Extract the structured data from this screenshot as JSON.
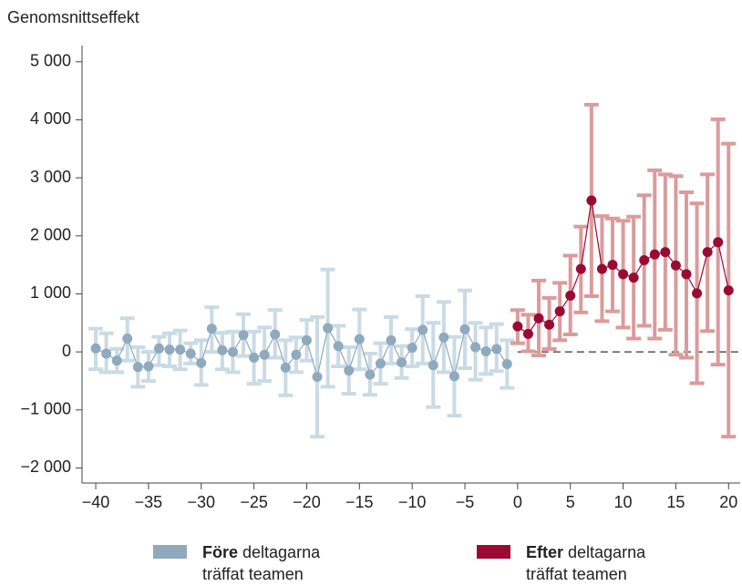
{
  "chart_data": {
    "type": "event-study",
    "y_label": "Genomsnittseffekt",
    "xlim": [
      -41.3,
      21.1
    ],
    "ylim": [
      -2260,
      5280
    ],
    "xticks": [
      {
        "value": -40,
        "label": "−40"
      },
      {
        "value": -35,
        "label": "−35"
      },
      {
        "value": -30,
        "label": "−30"
      },
      {
        "value": -25,
        "label": "−25"
      },
      {
        "value": -20,
        "label": "−20"
      },
      {
        "value": -15,
        "label": "−15"
      },
      {
        "value": -10,
        "label": "−10"
      },
      {
        "value": -5,
        "label": "−5"
      },
      0,
      5,
      10,
      15,
      20
    ],
    "yticks": [
      {
        "value": -2000,
        "label": "−2 000"
      },
      {
        "value": -1000,
        "label": "−1 000"
      },
      0,
      {
        "value": 1000,
        "label": "1 000"
      },
      {
        "value": 2000,
        "label": "2 000"
      },
      {
        "value": 3000,
        "label": "3 000"
      },
      {
        "value": 4000,
        "label": "4 000"
      },
      {
        "value": 5000,
        "label": "5 000"
      }
    ],
    "grid": false,
    "series": [
      {
        "name": "Före deltagarna träffat teamen",
        "color": "#8fa9bd",
        "error_color": "#c9dbe4",
        "x": [
          -40,
          -39,
          -38,
          -37,
          -36,
          -35,
          -34,
          -33,
          -32,
          -31,
          -30,
          -29,
          -28,
          -27,
          -26,
          -25,
          -24,
          -23,
          -22,
          -21,
          -20,
          -19,
          -18,
          -17,
          -16,
          -15,
          -14,
          -13,
          -12,
          -11,
          -10,
          -9,
          -8,
          -7,
          -6,
          -5,
          -4,
          -3,
          -2,
          -1
        ],
        "values": [
          60,
          -30,
          -150,
          230,
          -260,
          -250,
          60,
          40,
          40,
          -30,
          -190,
          400,
          30,
          0,
          290,
          -100,
          -50,
          300,
          -270,
          -50,
          200,
          -430,
          410,
          100,
          -320,
          220,
          -390,
          -200,
          200,
          -180,
          70,
          380,
          -230,
          250,
          -420,
          390,
          80,
          10,
          50,
          -210
        ],
        "lower": [
          -300,
          -350,
          -350,
          -150,
          -600,
          -500,
          -230,
          -250,
          -300,
          -200,
          -570,
          0,
          -300,
          -350,
          -70,
          -550,
          -500,
          -100,
          -750,
          -350,
          -150,
          -1460,
          -600,
          -250,
          -720,
          -300,
          -740,
          -550,
          -200,
          -450,
          -250,
          -200,
          -950,
          -350,
          -1100,
          -280,
          -480,
          -380,
          -330,
          -620
        ],
        "upper": [
          400,
          320,
          50,
          580,
          80,
          0,
          260,
          320,
          370,
          150,
          200,
          770,
          330,
          350,
          650,
          350,
          420,
          720,
          200,
          250,
          550,
          600,
          1420,
          450,
          80,
          730,
          -30,
          150,
          600,
          100,
          390,
          960,
          500,
          860,
          260,
          1060,
          500,
          420,
          480,
          200
        ]
      },
      {
        "name": "Efter deltagarna träffat teamen",
        "color": "#9b0a35",
        "error_color": "#dc9b9b",
        "x": [
          0,
          1,
          2,
          3,
          4,
          5,
          6,
          7,
          8,
          9,
          10,
          11,
          12,
          13,
          14,
          15,
          16,
          17,
          18,
          19,
          20
        ],
        "values": [
          440,
          310,
          580,
          470,
          700,
          970,
          1430,
          2610,
          1430,
          1500,
          1340,
          1280,
          1580,
          1680,
          1720,
          1490,
          1340,
          1010,
          1720,
          1890,
          1060
        ],
        "lower": [
          150,
          10,
          -60,
          50,
          200,
          300,
          680,
          960,
          530,
          700,
          420,
          230,
          450,
          230,
          380,
          -50,
          -100,
          -540,
          360,
          -220,
          -1460
        ],
        "upper": [
          720,
          640,
          1230,
          930,
          1190,
          1660,
          2160,
          4260,
          2340,
          2300,
          2260,
          2330,
          2700,
          3130,
          3060,
          3030,
          2750,
          2560,
          3060,
          4010,
          3590
        ]
      }
    ]
  }
}
